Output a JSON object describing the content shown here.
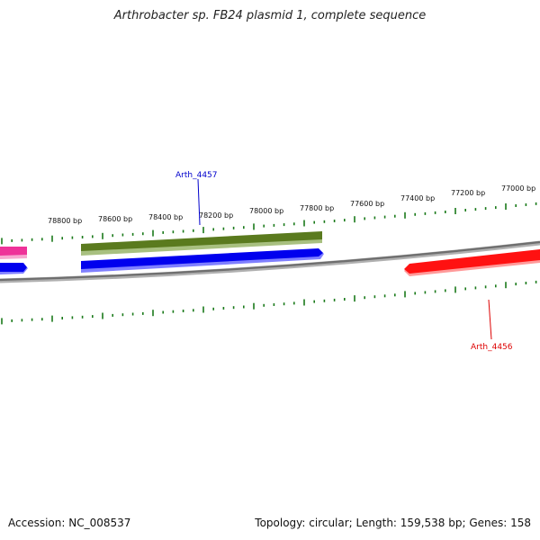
{
  "title": "Arthrobacter sp. FB24 plasmid 1, complete sequence",
  "footer": {
    "accession": "Accession: NC_008537",
    "summary": "Topology: circular; Length: 159,538 bp; Genes: 158"
  },
  "ruler_labels": [
    "78800 bp",
    "78600 bp",
    "78400 bp",
    "78200 bp",
    "78000 bp",
    "77800 bp",
    "77600 bp",
    "77400 bp",
    "77200 bp",
    "77000 bp"
  ],
  "gene_labels": [
    {
      "name": "Arth_4457",
      "color": "#0000cc"
    },
    {
      "name": "Arth_4456",
      "color": "#dd0000"
    }
  ],
  "colors": {
    "backbone": "#888888",
    "ticks": "#1a7a1a",
    "feature_olive": "#6b8e23",
    "feature_blue": "#0000ee",
    "feature_red": "#ff1111",
    "feature_pink": "#ee3399"
  }
}
